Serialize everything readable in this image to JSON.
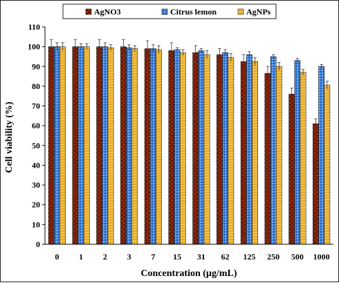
{
  "chart_data": {
    "type": "bar",
    "xlabel": "Concentration (µg/mL)",
    "ylabel": "Cell viability (%)",
    "ylim": [
      0,
      110
    ],
    "yticks": [
      0,
      10,
      20,
      30,
      40,
      50,
      60,
      70,
      80,
      90,
      100,
      110
    ],
    "grid": false,
    "legend_position": "top",
    "categories": [
      "0",
      "1",
      "2",
      "3",
      "7",
      "15",
      "31",
      "62",
      "125",
      "250",
      "500",
      "1000"
    ],
    "series": [
      {
        "name": "AgNO3",
        "color": "#7a2008",
        "pattern": "brick",
        "values": [
          100,
          100,
          100,
          100,
          99,
          98,
          97,
          96,
          92.5,
          86.5,
          76,
          61
        ],
        "errors": [
          3.5,
          3.5,
          3.5,
          3.5,
          4,
          4,
          3.5,
          3,
          3.5,
          3.5,
          3,
          2.5
        ]
      },
      {
        "name": "Citrus lemon",
        "color": "#3f86e0",
        "pattern": "dots",
        "values": [
          100,
          100,
          100,
          99.5,
          99,
          98.5,
          98,
          97,
          96,
          95,
          93,
          90
        ],
        "errors": [
          2,
          1.5,
          2,
          1.5,
          2,
          1,
          1,
          1.5,
          1.5,
          1,
          1,
          1
        ]
      },
      {
        "name": "AgNPs",
        "color": "#f0b232",
        "pattern": "hatch",
        "values": [
          100,
          100,
          99.5,
          99,
          98.5,
          97,
          96,
          94.5,
          92.5,
          90,
          87,
          80.5
        ],
        "errors": [
          2,
          1.5,
          1.5,
          1.5,
          2,
          1.5,
          2,
          2,
          2,
          2,
          1.5,
          2
        ]
      }
    ]
  }
}
